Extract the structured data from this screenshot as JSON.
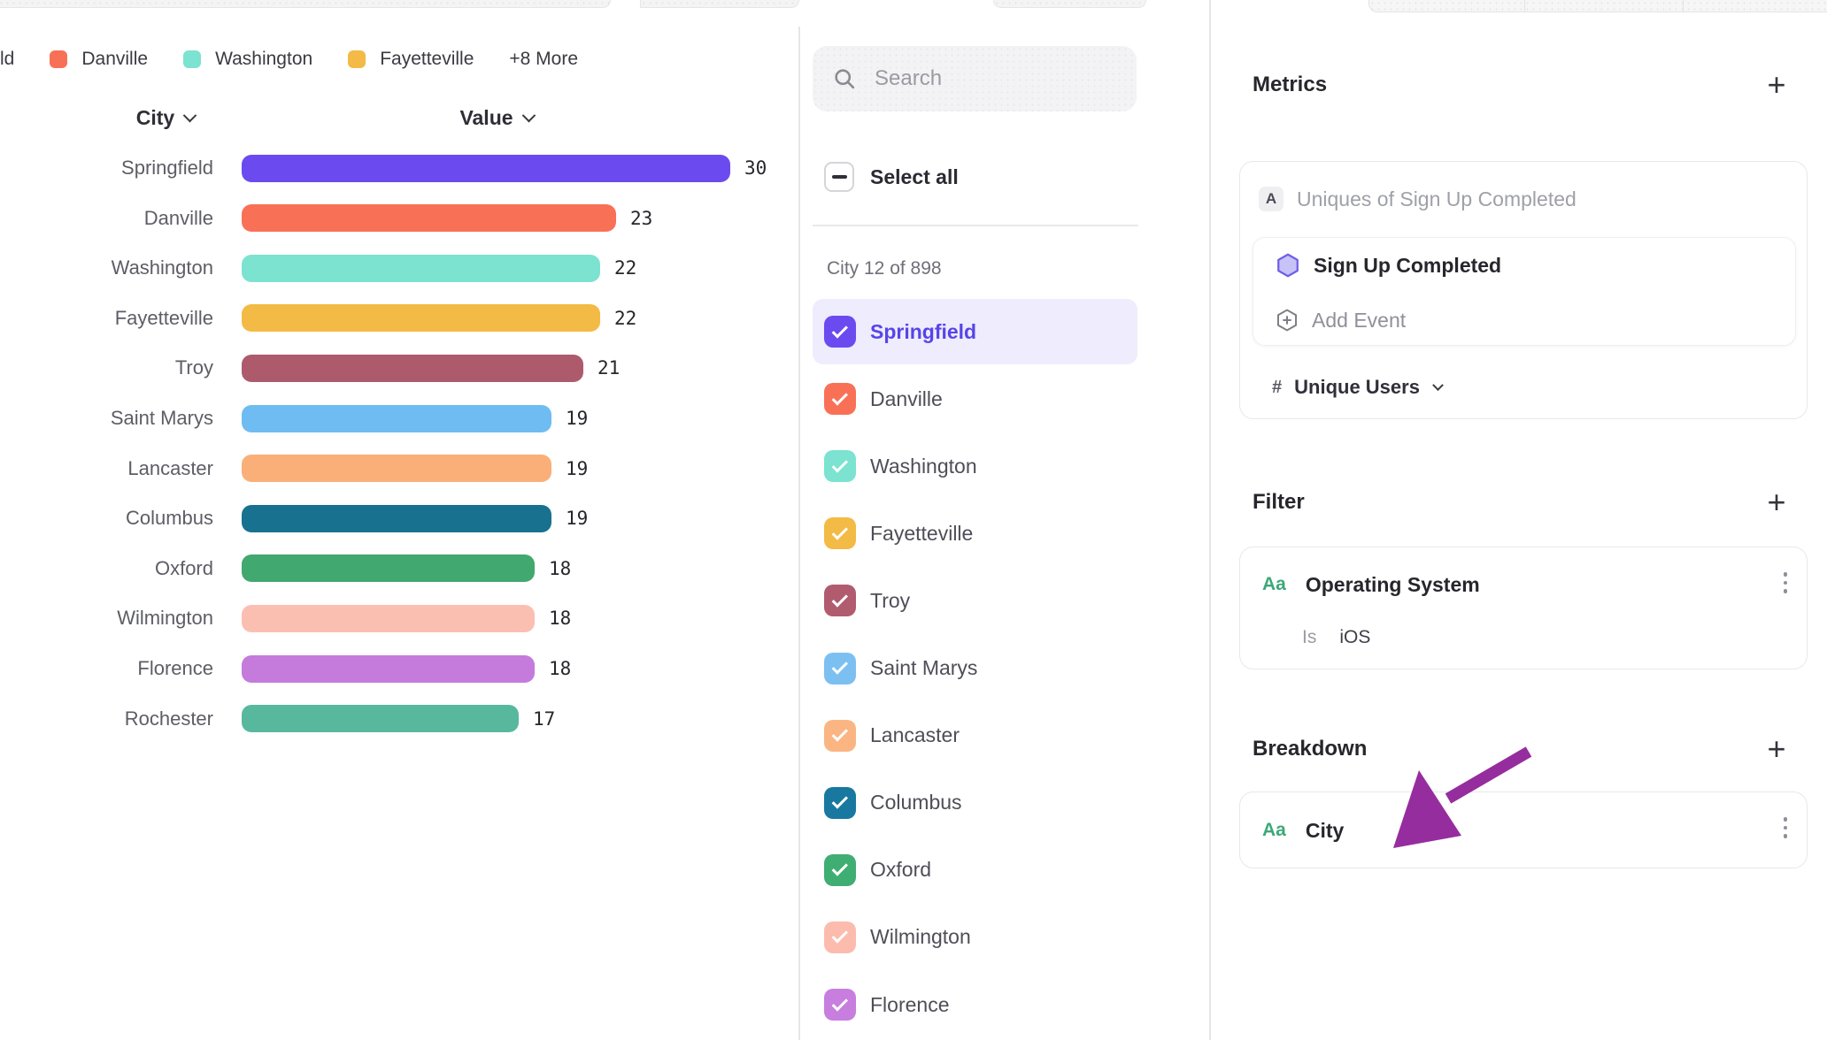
{
  "chart_data": {
    "type": "bar",
    "orientation": "horizontal",
    "title": "",
    "columns": {
      "category": "City",
      "value": "Value"
    },
    "categories": [
      "Springfield",
      "Danville",
      "Washington",
      "Fayetteville",
      "Troy",
      "Saint Marys",
      "Lancaster",
      "Columbus",
      "Oxford",
      "Wilmington",
      "Florence",
      "Rochester"
    ],
    "values": [
      30,
      23,
      22,
      22,
      21,
      19,
      19,
      19,
      18,
      18,
      18,
      17
    ],
    "colors": [
      "#6b4bef",
      "#f87157",
      "#7be3d0",
      "#f3ba45",
      "#ad5a6d",
      "#6fbcf2",
      "#fbaf78",
      "#17718f",
      "#41a86f",
      "#fbbfb2",
      "#c47bdc",
      "#58b89d"
    ],
    "xlim": [
      0,
      30
    ],
    "grid": false,
    "legend": {
      "position": "top",
      "items": [
        {
          "label": "ld",
          "color": null
        },
        {
          "label": "Danville",
          "color": "#f87157"
        },
        {
          "label": "Washington",
          "color": "#7be3d0"
        },
        {
          "label": "Fayetteville",
          "color": "#f3ba45"
        },
        {
          "label": "+8 More",
          "color": null
        }
      ]
    }
  },
  "selector": {
    "search_placeholder": "Search",
    "select_all_label": "Select all",
    "list_header": "City 12 of 898",
    "items": [
      {
        "label": "Springfield",
        "color": "#6b4bef",
        "checked": true,
        "highlighted": true
      },
      {
        "label": "Danville",
        "color": "#f87157",
        "checked": true,
        "highlighted": false
      },
      {
        "label": "Washington",
        "color": "#7be3d0",
        "checked": true,
        "highlighted": false
      },
      {
        "label": "Fayetteville",
        "color": "#f3ba45",
        "checked": true,
        "highlighted": false
      },
      {
        "label": "Troy",
        "color": "#b05c6e",
        "checked": true,
        "highlighted": false
      },
      {
        "label": "Saint Marys",
        "color": "#7cc0f2",
        "checked": true,
        "highlighted": false
      },
      {
        "label": "Lancaster",
        "color": "#fbb583",
        "checked": true,
        "highlighted": false
      },
      {
        "label": "Columbus",
        "color": "#1878a0",
        "checked": true,
        "highlighted": false
      },
      {
        "label": "Oxford",
        "color": "#3fae72",
        "checked": true,
        "highlighted": false
      },
      {
        "label": "Wilmington",
        "color": "#fbbcae",
        "checked": true,
        "highlighted": false
      },
      {
        "label": "Florence",
        "color": "#c77ede",
        "checked": true,
        "highlighted": false
      }
    ]
  },
  "inspector": {
    "metrics": {
      "title": "Metrics",
      "add_label": "+",
      "badge": "A",
      "summary": "Uniques of Sign Up Completed",
      "event_name": "Sign Up Completed",
      "add_event_label": "Add Event",
      "measure_prefix": "#",
      "measure": "Unique Users"
    },
    "filter": {
      "title": "Filter",
      "add_label": "+",
      "type_icon": "Aa",
      "property": "Operating System",
      "operator": "Is",
      "value": "iOS"
    },
    "breakdown": {
      "title": "Breakdown",
      "add_label": "+",
      "type_icon": "Aa",
      "property": "City"
    },
    "annotation_arrow_color": "#962d9e"
  }
}
